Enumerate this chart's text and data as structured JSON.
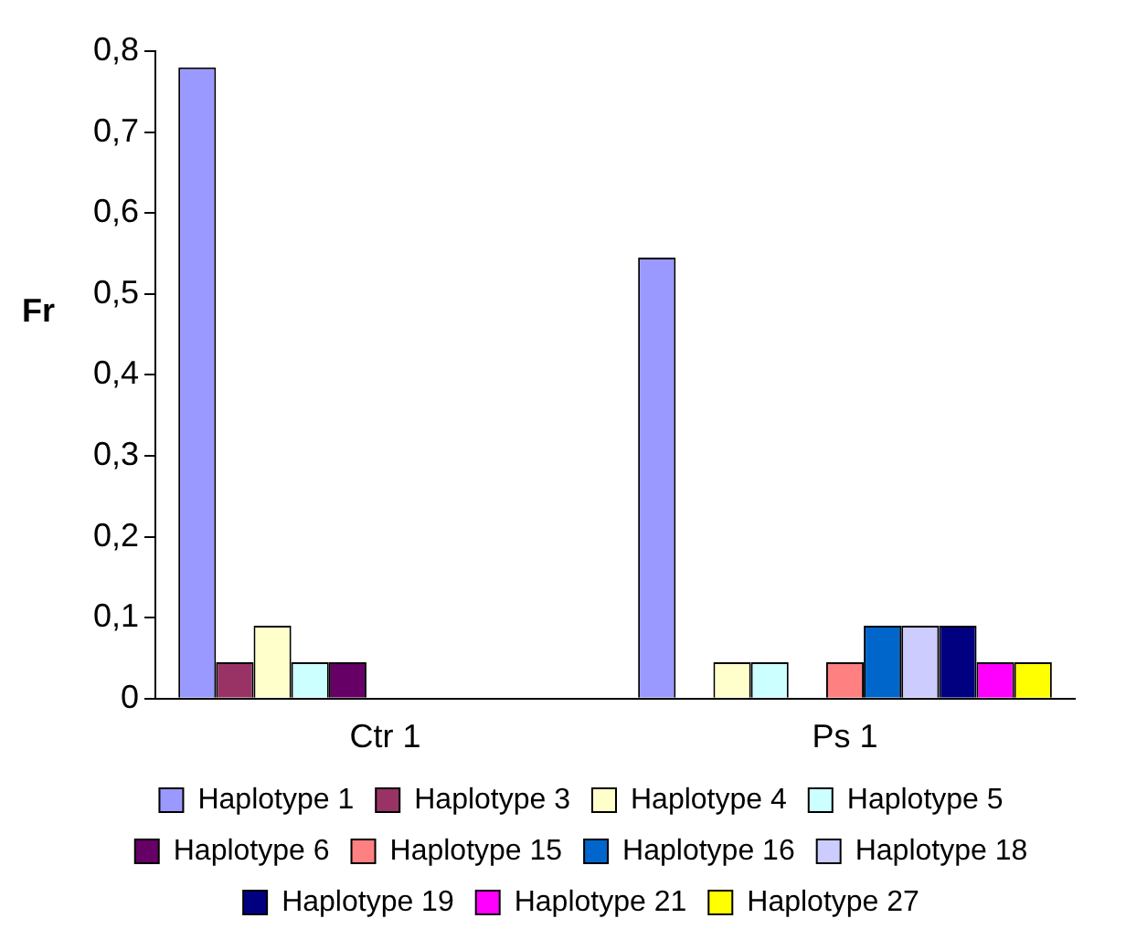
{
  "chart_data": {
    "type": "bar",
    "ylabel": "Fr",
    "categories": [
      "Ctr 1",
      "Ps 1"
    ],
    "series": [
      {
        "name": "Haplotype 1",
        "color": "#9999ff",
        "values": [
          0.78,
          0.545
        ]
      },
      {
        "name": "Haplotype 3",
        "color": "#993366",
        "values": [
          0.045,
          0
        ]
      },
      {
        "name": "Haplotype 4",
        "color": "#ffffcc",
        "values": [
          0.09,
          0.045
        ]
      },
      {
        "name": "Haplotype 5",
        "color": "#ccffff",
        "values": [
          0.045,
          0.045
        ]
      },
      {
        "name": "Haplotype 6",
        "color": "#660066",
        "values": [
          0.045,
          0
        ]
      },
      {
        "name": "Haplotype 15",
        "color": "#ff8080",
        "values": [
          0,
          0.045
        ]
      },
      {
        "name": "Haplotype 16",
        "color": "#0066cc",
        "values": [
          0,
          0.09
        ]
      },
      {
        "name": "Haplotype 18",
        "color": "#ccccff",
        "values": [
          0,
          0.09
        ]
      },
      {
        "name": "Haplotype 19",
        "color": "#000080",
        "values": [
          0,
          0.09
        ]
      },
      {
        "name": "Haplotype 21",
        "color": "#ff00ff",
        "values": [
          0,
          0.045
        ]
      },
      {
        "name": "Haplotype 27",
        "color": "#ffff00",
        "values": [
          0,
          0.045
        ]
      }
    ],
    "ylim": [
      0,
      0.8
    ],
    "yticks": [
      {
        "value": 0,
        "label": "0"
      },
      {
        "value": 0.1,
        "label": "0,1"
      },
      {
        "value": 0.2,
        "label": "0,2"
      },
      {
        "value": 0.3,
        "label": "0,3"
      },
      {
        "value": 0.4,
        "label": "0,4"
      },
      {
        "value": 0.5,
        "label": "0,5"
      },
      {
        "value": 0.6,
        "label": "0,6"
      },
      {
        "value": 0.7,
        "label": "0,7"
      },
      {
        "value": 0.8,
        "label": "0,8"
      }
    ],
    "grid": false,
    "legend": "bottom"
  }
}
